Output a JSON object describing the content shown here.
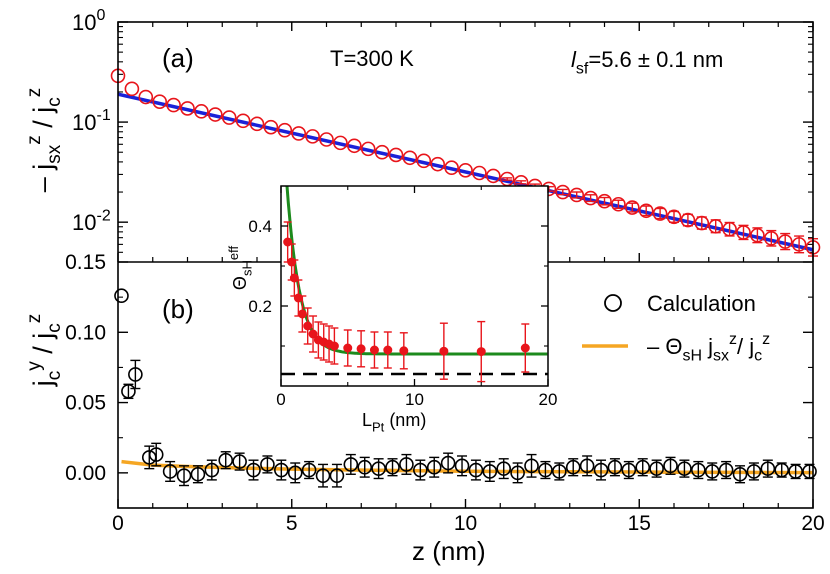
{
  "chart_data": [
    {
      "id": "a",
      "type": "scatter",
      "panel_label": "(a)",
      "annotations": [
        "T=300 K",
        "l_sf=5.6 ± 0.1 nm"
      ],
      "xlabel": "z (nm)",
      "ylabel": "– j_sx^z / j_c^z",
      "yscale": "log",
      "xlim": [
        0,
        20
      ],
      "ylim": [
        0.004,
        1
      ],
      "y_ticks": [
        {
          "v": 1,
          "label": "10",
          "exp": "0"
        },
        {
          "v": 0.1,
          "label": "10",
          "exp": "-1"
        },
        {
          "v": 0.01,
          "label": "10",
          "exp": "-2"
        }
      ],
      "colors": {
        "points": "#e8151b",
        "fit": "#1a22d8"
      },
      "points": {
        "x": [
          0.0,
          0.4,
          0.8,
          1.2,
          1.6,
          2.0,
          2.4,
          2.8,
          3.2,
          3.6,
          4.0,
          4.4,
          4.8,
          5.2,
          5.6,
          6.0,
          6.4,
          6.8,
          7.2,
          7.6,
          8.0,
          8.4,
          8.8,
          9.2,
          9.6,
          10.0,
          10.4,
          10.8,
          11.2,
          11.6,
          12.0,
          12.4,
          12.8,
          13.2,
          13.6,
          14.0,
          14.4,
          14.8,
          15.2,
          15.6,
          16.0,
          16.4,
          16.8,
          17.2,
          17.6,
          18.0,
          18.4,
          18.8,
          19.2,
          19.6,
          20.0
        ],
        "y": [
          0.29,
          0.215,
          0.178,
          0.16,
          0.148,
          0.137,
          0.128,
          0.119,
          0.111,
          0.103,
          0.096,
          0.089,
          0.083,
          0.077,
          0.072,
          0.067,
          0.062,
          0.058,
          0.054,
          0.05,
          0.047,
          0.044,
          0.041,
          0.038,
          0.035,
          0.033,
          0.031,
          0.029,
          0.027,
          0.025,
          0.023,
          0.0215,
          0.02,
          0.0187,
          0.0174,
          0.0162,
          0.0151,
          0.014,
          0.013,
          0.0122,
          0.0113,
          0.0105,
          0.0098,
          0.0091,
          0.0085,
          0.0079,
          0.0074,
          0.0069,
          0.0064,
          0.006,
          0.0056
        ]
      },
      "fit": {
        "x": [
          0,
          20
        ],
        "y": [
          0.19,
          0.0053
        ]
      }
    },
    {
      "id": "b",
      "type": "scatter",
      "panel_label": "(b)",
      "xlabel": "z (nm)",
      "ylabel": "j_c^y / j_c^z",
      "xlim": [
        0,
        20
      ],
      "ylim": [
        -0.025,
        0.15
      ],
      "x_ticks": [
        0,
        5,
        10,
        15,
        20
      ],
      "y_ticks": [
        {
          "v": 0.0,
          "label": "0.00"
        },
        {
          "v": 0.05,
          "label": "0.05"
        },
        {
          "v": 0.1,
          "label": "0.10"
        },
        {
          "v": 0.15,
          "label": "0.15"
        }
      ],
      "legend": {
        "placement": "right",
        "entries": [
          "Calculation",
          "– Θ_sH j_sx^z / j_c^z"
        ]
      },
      "colors": {
        "points": "#000000",
        "line": "#f5a623"
      },
      "points": {
        "x": [
          0.1,
          0.3,
          0.5,
          0.9,
          1.1,
          1.5,
          1.9,
          2.3,
          2.7,
          3.1,
          3.5,
          3.9,
          4.3,
          4.7,
          5.1,
          5.5,
          5.9,
          6.3,
          6.7,
          7.1,
          7.5,
          7.9,
          8.3,
          8.7,
          9.1,
          9.5,
          9.9,
          10.3,
          10.7,
          11.1,
          11.5,
          11.9,
          12.3,
          12.7,
          13.1,
          13.5,
          13.9,
          14.3,
          14.7,
          15.1,
          15.5,
          15.9,
          16.3,
          16.7,
          17.1,
          17.5,
          17.9,
          18.3,
          18.7,
          19.1,
          19.5,
          19.9
        ],
        "y": [
          0.126,
          0.058,
          0.07,
          0.011,
          0.013,
          0.001,
          -0.002,
          -0.001,
          0.002,
          0.009,
          0.008,
          0.002,
          0.006,
          0.002,
          0.0,
          0.002,
          -0.002,
          -0.002,
          0.006,
          0.004,
          0.003,
          0.004,
          0.006,
          0.002,
          0.004,
          0.007,
          0.005,
          0.002,
          0.001,
          0.003,
          0.0,
          0.005,
          0.002,
          0.001,
          0.004,
          0.005,
          0.002,
          0.004,
          0.002,
          0.004,
          0.003,
          0.005,
          0.003,
          0.002,
          0.001,
          0.002,
          -0.001,
          0.001,
          0.003,
          0.002,
          0.001,
          0.001
        ],
        "err": [
          0.0,
          0.005,
          0.01,
          0.008,
          0.008,
          0.007,
          0.007,
          0.006,
          0.007,
          0.006,
          0.006,
          0.007,
          0.006,
          0.007,
          0.007,
          0.006,
          0.008,
          0.008,
          0.007,
          0.007,
          0.007,
          0.006,
          0.007,
          0.007,
          0.007,
          0.007,
          0.007,
          0.007,
          0.007,
          0.007,
          0.007,
          0.008,
          0.006,
          0.006,
          0.006,
          0.007,
          0.007,
          0.006,
          0.006,
          0.006,
          0.006,
          0.006,
          0.006,
          0.006,
          0.006,
          0.006,
          0.006,
          0.006,
          0.006,
          0.005,
          0.005,
          0.005
        ]
      },
      "line": {
        "x": [
          0.1,
          1,
          2,
          3,
          4,
          5,
          6,
          8,
          10,
          12,
          14,
          16,
          18,
          20
        ],
        "y": [
          0.008,
          0.0055,
          0.0045,
          0.0038,
          0.0032,
          0.0027,
          0.0023,
          0.0017,
          0.0012,
          0.0009,
          0.0007,
          0.0005,
          0.0003,
          0.0002
        ]
      }
    },
    {
      "id": "inset",
      "type": "scatter",
      "xlabel": "L_Pt (nm)",
      "ylabel": "Θ_sH^eff",
      "xlim": [
        0,
        20
      ],
      "ylim": [
        0.0,
        0.5
      ],
      "x_ticks": [
        0,
        10,
        20
      ],
      "y_ticks": [
        {
          "v": 0.2,
          "label": "0.2"
        },
        {
          "v": 0.4,
          "label": "0.4"
        }
      ],
      "colors": {
        "points": "#e8151b",
        "fit": "#1d8a1d",
        "dashed": "#000000"
      },
      "points": {
        "x": [
          0.5,
          0.8,
          1.0,
          1.3,
          1.6,
          2.0,
          2.4,
          2.8,
          3.2,
          3.6,
          4.0,
          5.0,
          6.0,
          7.0,
          8.0,
          9.2,
          12.2,
          15.0,
          18.3
        ],
        "y": [
          0.36,
          0.31,
          0.27,
          0.22,
          0.18,
          0.15,
          0.13,
          0.115,
          0.11,
          0.105,
          0.1,
          0.095,
          0.093,
          0.09,
          0.09,
          0.088,
          0.087,
          0.086,
          0.095
        ],
        "err": [
          0.05,
          0.045,
          0.045,
          0.045,
          0.045,
          0.045,
          0.045,
          0.045,
          0.045,
          0.045,
          0.045,
          0.045,
          0.045,
          0.045,
          0.045,
          0.045,
          0.07,
          0.075,
          0.06
        ]
      },
      "fit_y_inf": 0.08,
      "fit_y0": 0.5,
      "fit_lambda": 0.95,
      "dashed_y": 0.03
    }
  ]
}
